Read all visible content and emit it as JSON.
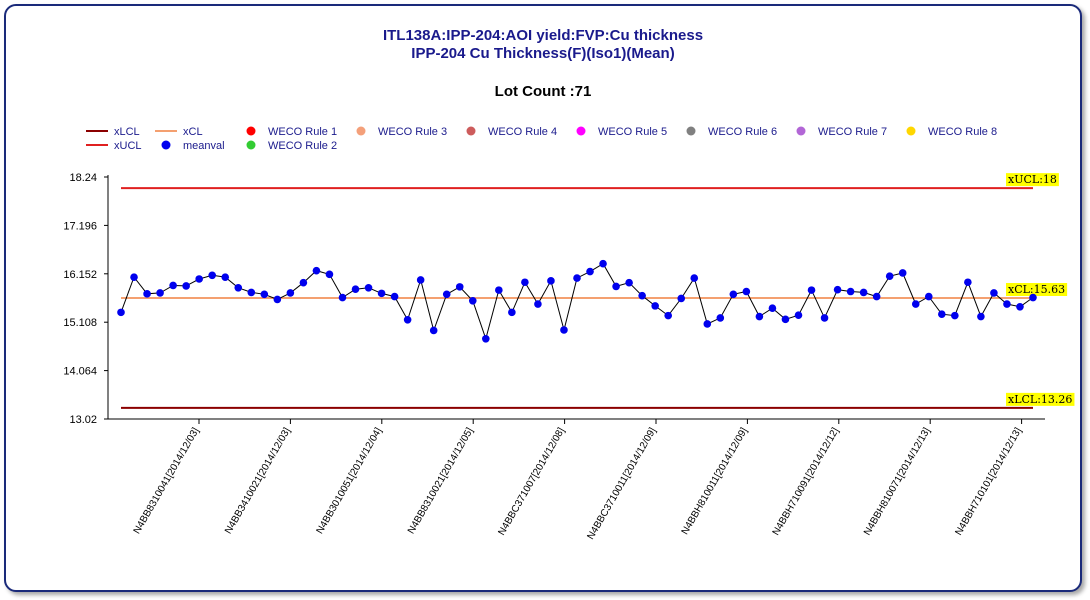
{
  "chart_data": {
    "type": "line",
    "title": "ITL138A:IPP-204:AOI yield:FVP:Cu thickness",
    "subtitle": "IPP-204 Cu Thickness(F)(Iso1)(Mean)",
    "lot_count_label": "Lot Count :71",
    "ylim": [
      13.02,
      18.24
    ],
    "y_ticks": [
      "13.02",
      "14.064",
      "15.108",
      "16.152",
      "17.196",
      "18.24"
    ],
    "y_tick_values": [
      13.02,
      14.064,
      15.108,
      16.152,
      17.196,
      18.24
    ],
    "legend": [
      {
        "name": "xLCL",
        "kind": "line",
        "color": "#8b0000"
      },
      {
        "name": "xUCL",
        "kind": "line",
        "color": "#e02020"
      },
      {
        "name": "xCL",
        "kind": "line",
        "color": "#f4a070"
      },
      {
        "name": "meanval",
        "kind": "dot",
        "color": "#0000ee"
      },
      {
        "name": "WECO Rule 1",
        "kind": "dot",
        "color": "#ff0000"
      },
      {
        "name": "WECO Rule 2",
        "kind": "dot",
        "color": "#33cc33"
      },
      {
        "name": "WECO Rule 3",
        "kind": "dot",
        "color": "#f4a07a"
      },
      {
        "name": "WECO Rule 4",
        "kind": "dot",
        "color": "#cd5c5c"
      },
      {
        "name": "WECO Rule 5",
        "kind": "dot",
        "color": "#ff00ff"
      },
      {
        "name": "WECO Rule 6",
        "kind": "dot",
        "color": "#808080"
      },
      {
        "name": "WECO Rule 7",
        "kind": "dot",
        "color": "#b266d6"
      },
      {
        "name": "WECO Rule 8",
        "kind": "dot",
        "color": "#ffd700"
      }
    ],
    "control_limits": {
      "ucl": {
        "value": 18.0,
        "label": "xUCL:18",
        "color": "#e02020"
      },
      "cl": {
        "value": 15.63,
        "label": "xCL:15.63",
        "color": "#f4a070"
      },
      "lcl": {
        "value": 13.26,
        "label": "xLCL:13.26",
        "color": "#8b0000"
      }
    },
    "x_tick_labels": [
      {
        "index": 8,
        "label": "N4BB8310041[2014/12/03]"
      },
      {
        "index": 16,
        "label": "N4BB3410021[2014/12/03]"
      },
      {
        "index": 24,
        "label": "N4BB3010051[2014/12/04]"
      },
      {
        "index": 32,
        "label": "N4BB8310021[2014/12/05]"
      },
      {
        "index": 40,
        "label": "N4BBC371007[2014/12/08]"
      },
      {
        "index": 48,
        "label": "N4BBC3710011[2014/12/09]"
      },
      {
        "index": 56,
        "label": "N4BBH810011[2014/12/09]"
      },
      {
        "index": 64,
        "label": "N4BBH710091[2014/12/12]"
      },
      {
        "index": 72,
        "label": "N4BBH810071[2014/12/13]"
      },
      {
        "index": 80,
        "label": "N4BBH710101[2014/12/13]"
      }
    ],
    "series": [
      {
        "name": "meanval",
        "values": [
          15.32,
          16.08,
          15.72,
          15.74,
          15.9,
          15.89,
          16.04,
          16.12,
          16.08,
          15.85,
          15.75,
          15.71,
          15.6,
          15.74,
          15.96,
          16.22,
          16.14,
          15.64,
          15.82,
          15.85,
          15.73,
          15.66,
          15.16,
          16.02,
          14.93,
          15.71,
          15.87,
          15.57,
          14.75,
          15.8,
          15.32,
          15.97,
          15.5,
          16.0,
          14.94,
          16.06,
          16.2,
          16.37,
          15.88,
          15.96,
          15.68,
          15.46,
          15.25,
          15.62,
          16.06,
          15.07,
          15.2,
          15.71,
          15.77,
          15.23,
          15.41,
          15.17,
          15.26,
          15.8,
          15.2,
          15.81,
          15.77,
          15.75,
          15.66,
          16.1,
          16.17,
          15.5,
          15.66,
          15.28,
          15.25,
          15.97,
          15.23,
          15.74,
          15.5,
          15.44,
          15.64
        ]
      }
    ]
  }
}
